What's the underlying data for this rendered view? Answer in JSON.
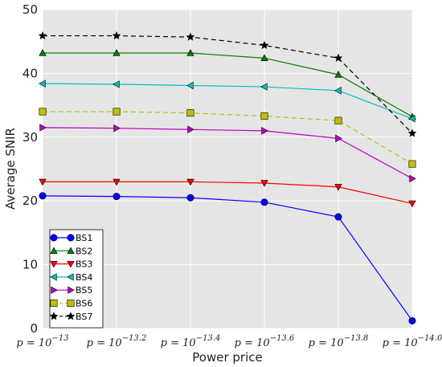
{
  "chart_data": {
    "type": "line",
    "title": "",
    "xlabel": "Power price",
    "ylabel": "Average SNIR",
    "categories": [
      {
        "base": "p = 10",
        "exp": "−13"
      },
      {
        "base": "p = 10",
        "exp": "−13.2"
      },
      {
        "base": "p = 10",
        "exp": "−13.4"
      },
      {
        "base": "p = 10",
        "exp": "−13.6"
      },
      {
        "base": "p = 10",
        "exp": "−13.8"
      },
      {
        "base": "p = 10",
        "exp": "−14.0"
      }
    ],
    "ylim": [
      0,
      50
    ],
    "yticks": [
      "0",
      "10",
      "20",
      "30",
      "40",
      "50"
    ],
    "grid": true,
    "legend_position": "lower-left",
    "series": [
      {
        "name": "BS1",
        "color": "#0000ff",
        "marker": "circle",
        "dash": "solid",
        "values": [
          20.8,
          20.7,
          20.5,
          19.8,
          17.5,
          1.2
        ]
      },
      {
        "name": "BS2",
        "color": "#008000",
        "marker": "triangle-up",
        "dash": "solid",
        "values": [
          43.2,
          43.2,
          43.2,
          42.4,
          39.8,
          33.2
        ]
      },
      {
        "name": "BS3",
        "color": "#ff0000",
        "marker": "triangle-down",
        "dash": "solid",
        "values": [
          23.0,
          23.0,
          23.0,
          22.8,
          22.2,
          19.6
        ]
      },
      {
        "name": "BS4",
        "color": "#00bfbf",
        "marker": "triangle-left",
        "dash": "solid",
        "values": [
          38.4,
          38.3,
          38.1,
          37.9,
          37.3,
          32.9
        ]
      },
      {
        "name": "BS5",
        "color": "#bf00bf",
        "marker": "triangle-right",
        "dash": "solid",
        "values": [
          31.5,
          31.4,
          31.2,
          31.0,
          29.8,
          23.5
        ]
      },
      {
        "name": "BS6",
        "color": "#bfbf00",
        "marker": "square",
        "dash": "dashed",
        "values": [
          34.0,
          34.0,
          33.8,
          33.3,
          32.6,
          25.8
        ]
      },
      {
        "name": "BS7",
        "color": "#000000",
        "marker": "star",
        "dash": "dashed",
        "values": [
          45.9,
          45.9,
          45.7,
          44.4,
          42.4,
          30.6
        ]
      }
    ]
  }
}
